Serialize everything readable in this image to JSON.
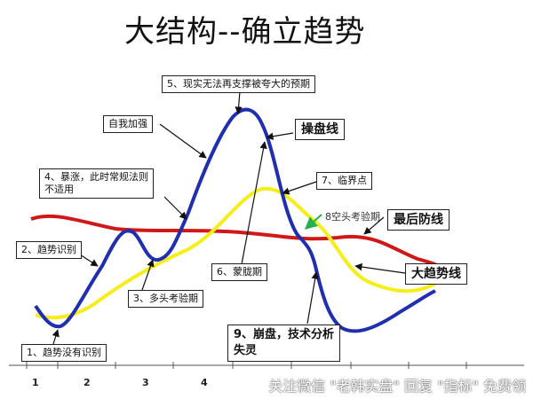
{
  "title": "大结构--确立趋势",
  "labels": {
    "l1": "1、趋势没有识别",
    "l2": "2、趋势识别",
    "l3": "3、多头考验期",
    "l4_a": "4、暴涨，此时常规法则",
    "l4_b": "不适用",
    "l5": "5、现实无法再支撑被夸大的预期",
    "l6": "6、蒙胧期",
    "l7": "7、临界点",
    "l8": "8空头考验期",
    "l9_a": "9、崩盘，技术分析",
    "l9_b": "失灵",
    "self": "自我加强"
  },
  "legend": {
    "operator_line": "操盘线",
    "last_defense": "最后防线",
    "big_trend": "大趋势线"
  },
  "axis_ticks": [
    "1",
    "2",
    "3",
    "4"
  ],
  "watermark": "关注微信 \"老韩实盘\" 回复 \"指标\" 免费领",
  "colors": {
    "operator_line": "#1f2fb0",
    "big_trend": "#f5ee1a",
    "last_defense": "#d01818",
    "arrow_green": "#22b14c"
  }
}
